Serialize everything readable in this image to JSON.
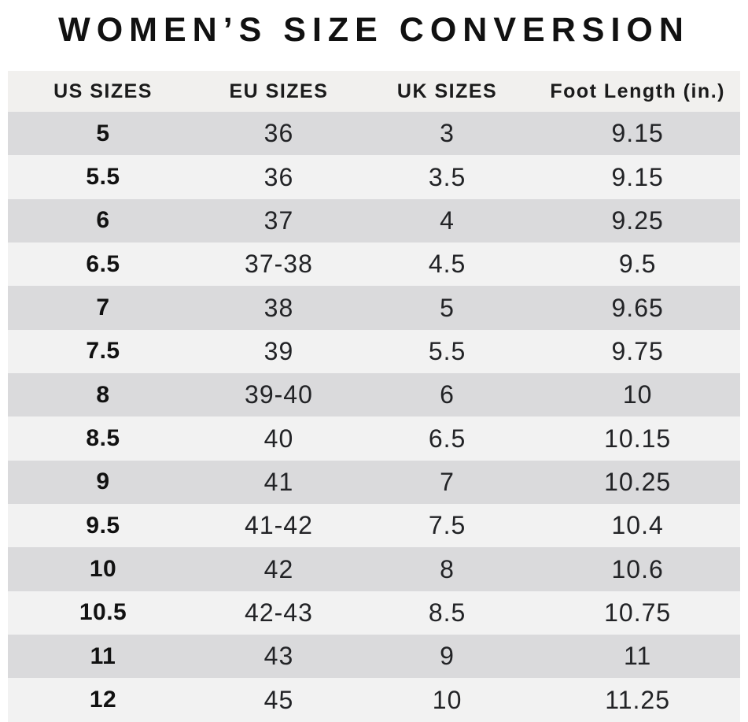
{
  "title": "WOMEN’S SIZE CONVERSION",
  "chart_data": {
    "type": "table",
    "title": "WOMEN’S SIZE CONVERSION",
    "columns": [
      "US SIZES",
      "EU SIZES",
      "UK SIZES",
      "Foot Length (in.)"
    ],
    "rows": [
      [
        "5",
        "36",
        "3",
        "9.15"
      ],
      [
        "5.5",
        "36",
        "3.5",
        "9.15"
      ],
      [
        "6",
        "37",
        "4",
        "9.25"
      ],
      [
        "6.5",
        "37-38",
        "4.5",
        "9.5"
      ],
      [
        "7",
        "38",
        "5",
        "9.65"
      ],
      [
        "7.5",
        "39",
        "5.5",
        "9.75"
      ],
      [
        "8",
        "39-40",
        "6",
        "10"
      ],
      [
        "8.5",
        "40",
        "6.5",
        "10.15"
      ],
      [
        "9",
        "41",
        "7",
        "10.25"
      ],
      [
        "9.5",
        "41-42",
        "7.5",
        "10.4"
      ],
      [
        "10",
        "42",
        "8",
        "10.6"
      ],
      [
        "10.5",
        "42-43",
        "8.5",
        "10.75"
      ],
      [
        "11",
        "43",
        "9",
        "11"
      ],
      [
        "12",
        "45",
        "10",
        "11.25"
      ]
    ],
    "layout": {
      "row_striping": "first data row dark, alternating",
      "grid": false
    }
  },
  "colors": {
    "row_dark": "#dadadc",
    "row_light": "#f2f2f2",
    "header_bg": "#f1f0ee",
    "text_color": "#1b1b1b"
  }
}
